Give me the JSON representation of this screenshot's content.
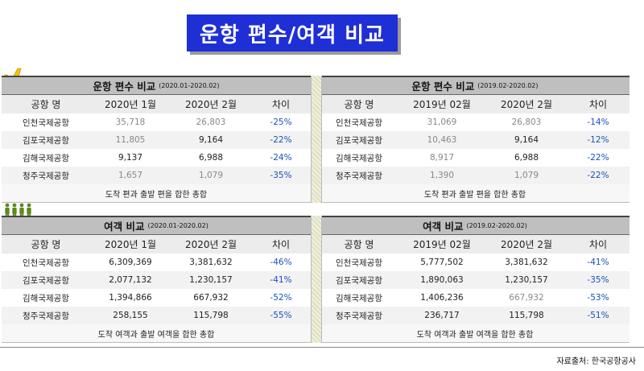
{
  "title": "운항 편수/여객 비교",
  "source": "자료출처: 한국공항공사",
  "icons": {
    "flights": "airplane-icon",
    "passengers": "people-icon"
  },
  "colors": {
    "title_bg": "#1f2fd6",
    "diff": "#1b4fbf",
    "header_bg": "#bfbfbf"
  },
  "flights_left": {
    "title": "운항 편수 비교",
    "period": "(2020.01-2020.02)",
    "cols": [
      "공항 명",
      "2020년 1월",
      "2020년 2월",
      "차이"
    ],
    "rows": [
      [
        "인천국제공항",
        "35,718",
        "26,803",
        "-25%"
      ],
      [
        "김포국제공항",
        "11,805",
        "9,164",
        "-22%"
      ],
      [
        "김해국제공항",
        "9,137",
        "6,988",
        "-24%"
      ],
      [
        "청주국제공항",
        "1,657",
        "1,079",
        "-35%"
      ]
    ],
    "note": "도착 편과 출발 편을 합한 총합"
  },
  "flights_right": {
    "title": "운항 편수 비교",
    "period": "(2019.02-2020.02)",
    "cols": [
      "공항 명",
      "2019년 02월",
      "2020년 2월",
      "차이"
    ],
    "rows": [
      [
        "인천국제공항",
        "31,069",
        "26,803",
        "-14%"
      ],
      [
        "김포국제공항",
        "10,463",
        "9,164",
        "-12%"
      ],
      [
        "김해국제공항",
        "8,917",
        "6,988",
        "-22%"
      ],
      [
        "청주국제공항",
        "1,390",
        "1,079",
        "-22%"
      ]
    ],
    "note": "도착 편과 출발 편을 합한 총합"
  },
  "pax_left": {
    "title": "여객 비교",
    "period": "(2020.01-2020.02)",
    "cols": [
      "공항 명",
      "2020년 1월",
      "2020년 2월",
      "차이"
    ],
    "rows": [
      [
        "인천국제공항",
        "6,309,369",
        "3,381,632",
        "-46%"
      ],
      [
        "김포국제공항",
        "2,077,132",
        "1,230,157",
        "-41%"
      ],
      [
        "김해국제공항",
        "1,394,866",
        "667,932",
        "-52%"
      ],
      [
        "청주국제공항",
        "258,155",
        "115,798",
        "-55%"
      ]
    ],
    "note": "도착 여객과 출발 여객을 합한 총합"
  },
  "pax_right": {
    "title": "여객 비교",
    "period": "(2019.02-2020.02)",
    "cols": [
      "공항 명",
      "2019년 02월",
      "2020년 2월",
      "차이"
    ],
    "rows": [
      [
        "인천국제공항",
        "5,777,502",
        "3,381,632",
        "-41%"
      ],
      [
        "김포국제공항",
        "1,890,063",
        "1,230,157",
        "-35%"
      ],
      [
        "김해국제공항",
        "1,406,236",
        "667,932",
        "-53%"
      ],
      [
        "청주국제공항",
        "236,717",
        "115,798",
        "-51%"
      ]
    ],
    "note": "도착 여객과 출발 여객을 합한 총합"
  }
}
